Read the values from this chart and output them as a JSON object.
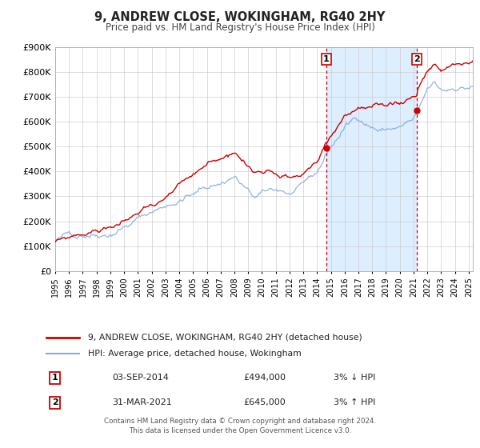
{
  "title": "9, ANDREW CLOSE, WOKINGHAM, RG40 2HY",
  "subtitle": "Price paid vs. HM Land Registry's House Price Index (HPI)",
  "x_start_year": 1995,
  "x_end_year": 2025,
  "y_min": 0,
  "y_max": 900000,
  "y_ticks": [
    0,
    100000,
    200000,
    300000,
    400000,
    500000,
    600000,
    700000,
    800000,
    900000
  ],
  "y_tick_labels": [
    "£0",
    "£100K",
    "£200K",
    "£300K",
    "£400K",
    "£500K",
    "£600K",
    "£700K",
    "£800K",
    "£900K"
  ],
  "marker1_year": 2014.67,
  "marker1_value": 494000,
  "marker2_year": 2021.25,
  "marker2_value": 645000,
  "marker1_date": "03-SEP-2014",
  "marker1_price": "£494,000",
  "marker1_hpi": "3% ↓ HPI",
  "marker2_date": "31-MAR-2021",
  "marker2_price": "£645,000",
  "marker2_hpi": "3% ↑ HPI",
  "legend_line1": "9, ANDREW CLOSE, WOKINGHAM, RG40 2HY (detached house)",
  "legend_line2": "HPI: Average price, detached house, Wokingham",
  "price_line_color": "#cc0000",
  "hpi_line_color": "#88aadd",
  "shaded_region_color": "#ddeeff",
  "footer_line1": "Contains HM Land Registry data © Crown copyright and database right 2024.",
  "footer_line2": "This data is licensed under the Open Government Licence v3.0.",
  "background_color": "#ffffff",
  "grid_color": "#cccccc"
}
